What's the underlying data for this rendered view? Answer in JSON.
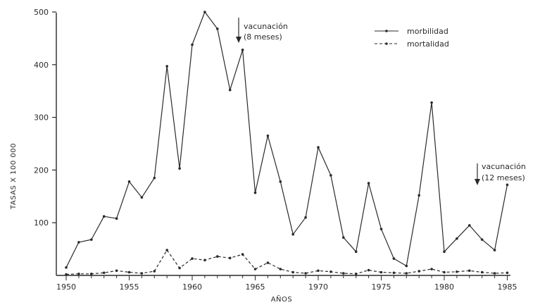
{
  "chart_data": {
    "type": "line",
    "xlabel": "AÑOS",
    "ylabel": "TASAS X 100 000",
    "xlim": [
      1949,
      1986
    ],
    "ylim": [
      0,
      500
    ],
    "x_ticks": [
      1950,
      1955,
      1960,
      1965,
      1970,
      1975,
      1980,
      1985
    ],
    "y_ticks": [
      100,
      200,
      300,
      400,
      500
    ],
    "x": [
      1950,
      1951,
      1952,
      1953,
      1954,
      1955,
      1956,
      1957,
      1958,
      1959,
      1960,
      1961,
      1962,
      1963,
      1964,
      1965,
      1966,
      1967,
      1968,
      1969,
      1970,
      1971,
      1972,
      1973,
      1974,
      1975,
      1976,
      1977,
      1978,
      1979,
      1980,
      1981,
      1982,
      1983,
      1984,
      1985
    ],
    "series": [
      {
        "name": "morbilidad",
        "style": "solid",
        "values": [
          15,
          63,
          68,
          112,
          108,
          178,
          148,
          185,
          397,
          203,
          438,
          500,
          468,
          352,
          428,
          157,
          265,
          178,
          78,
          110,
          243,
          190,
          72,
          45,
          175,
          88,
          32,
          18,
          152,
          328,
          45,
          70,
          95,
          68,
          48,
          172
        ]
      },
      {
        "name": "mortalidad",
        "style": "dashed",
        "values": [
          2,
          3,
          3,
          5,
          9,
          6,
          4,
          8,
          48,
          14,
          32,
          29,
          36,
          33,
          40,
          12,
          24,
          12,
          6,
          4,
          9,
          7,
          4,
          3,
          10,
          6,
          5,
          4,
          8,
          12,
          6,
          7,
          9,
          6,
          4,
          5
        ]
      }
    ],
    "legend_position": "top-right",
    "annotations": [
      {
        "lines": [
          "vacunación",
          "(8 meses)"
        ],
        "x": 1964
      },
      {
        "lines": [
          "vacunación",
          "(12 meses)"
        ],
        "x": 1985
      }
    ]
  }
}
